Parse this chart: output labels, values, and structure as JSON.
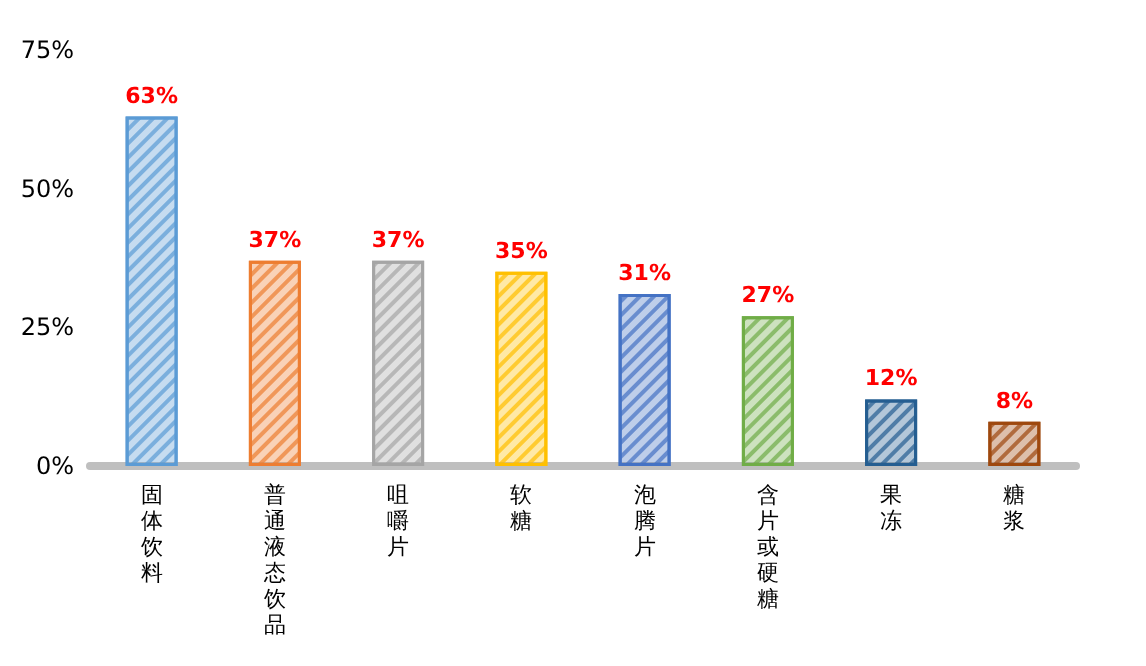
{
  "chart_data": {
    "type": "bar",
    "categories": [
      "固体饮料",
      "普通液态饮品",
      "咀嚼片",
      "软糖",
      "泡腾片",
      "含片或硬糖",
      "果冻",
      "糖浆"
    ],
    "values": [
      63,
      37,
      37,
      35,
      31,
      27,
      12,
      8
    ],
    "value_labels": [
      "63%",
      "37%",
      "37%",
      "35%",
      "31%",
      "27%",
      "12%",
      "8%"
    ],
    "colors": [
      "#5b9bd5",
      "#ed7d31",
      "#a5a5a5",
      "#ffc000",
      "#4472c4",
      "#70ad47",
      "#255e91",
      "#9e480e"
    ],
    "ylim": [
      0,
      75
    ],
    "yticks": [
      {
        "value": 0,
        "label": "0%"
      },
      {
        "value": 25,
        "label": "25%"
      },
      {
        "value": 50,
        "label": "50%"
      },
      {
        "value": 75,
        "label": "75%"
      }
    ],
    "grid": false
  }
}
